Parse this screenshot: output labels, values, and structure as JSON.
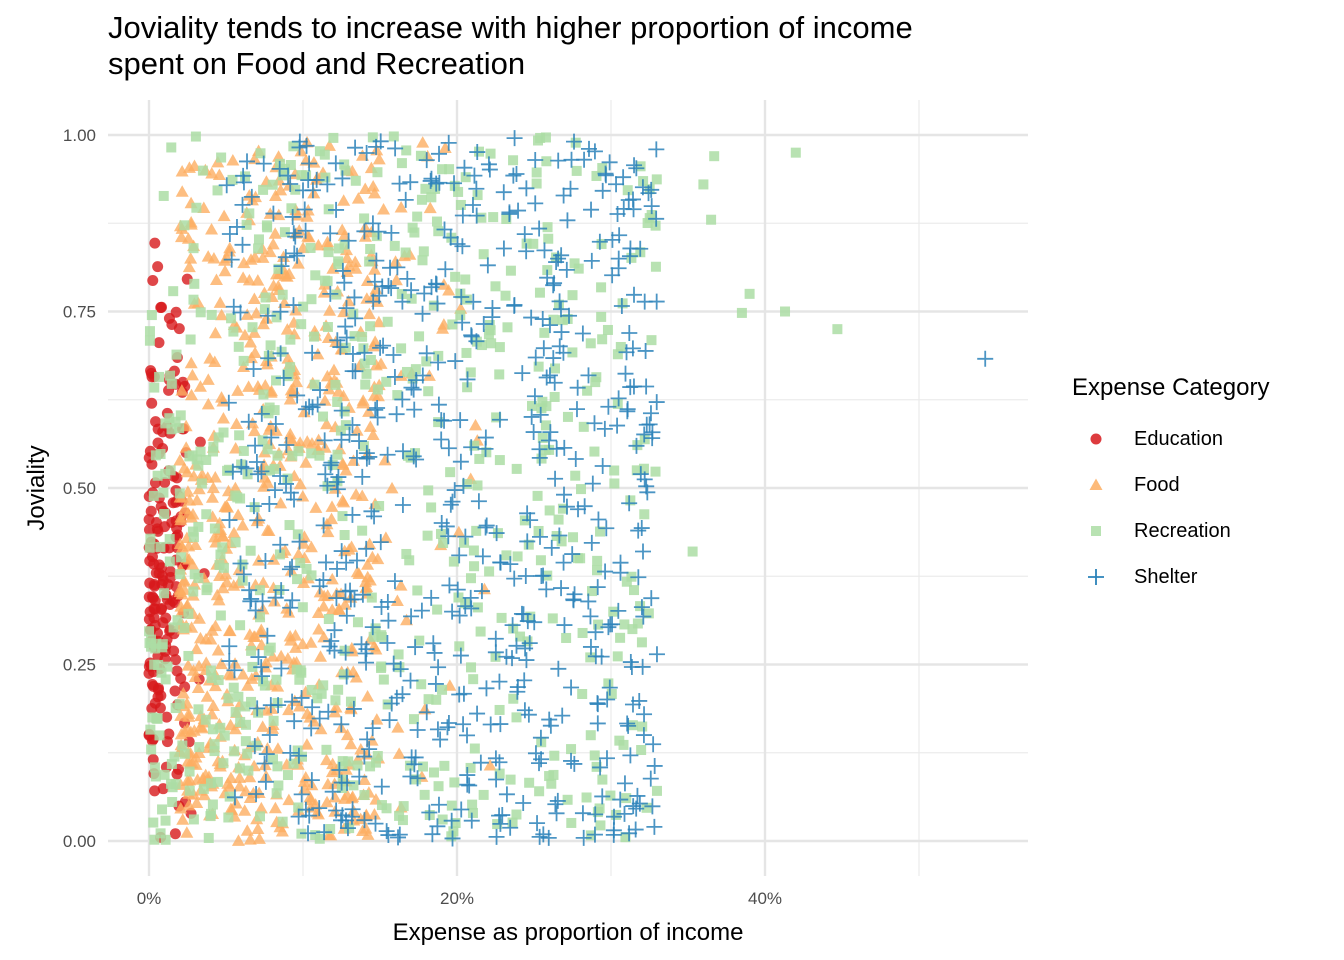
{
  "chart_data": {
    "type": "scatter",
    "title": "Joviality tends to increase with higher proportion of income\nspent on Food and Recreation",
    "xlabel": "Expense as proportion of income",
    "ylabel": "Joviality",
    "xlim": [
      -0.027,
      0.57
    ],
    "ylim": [
      -0.045,
      1.055
    ],
    "x_ticks": [
      0,
      0.2,
      0.4
    ],
    "x_tick_labels": [
      "0%",
      "20%",
      "40%"
    ],
    "x_minor_ticks": [
      0.1,
      0.3,
      0.5
    ],
    "y_ticks": [
      0,
      0.25,
      0.5,
      0.75,
      1.0
    ],
    "y_tick_labels": [
      "0.00",
      "0.25",
      "0.50",
      "0.75",
      "1.00"
    ],
    "grid": true,
    "legend": {
      "title": "Expense Category",
      "position": "right",
      "entries": [
        {
          "name": "Education",
          "shape": "circle",
          "color": "#d7191c"
        },
        {
          "name": "Food",
          "shape": "triangle",
          "color": "#fdae61"
        },
        {
          "name": "Recreation",
          "shape": "square",
          "color": "#abdda4"
        },
        {
          "name": "Shelter",
          "shape": "plus",
          "color": "#2b83ba"
        }
      ]
    },
    "series": [
      {
        "name": "Education",
        "n": 180,
        "x_range": [
          0,
          0.046
        ],
        "y_range": [
          0,
          0.98
        ],
        "note": "concentrated 0-2%, denser at low joviality"
      },
      {
        "name": "Food",
        "n": 700,
        "x_range": [
          0.02,
          0.25
        ],
        "y_range": [
          0,
          1.0
        ],
        "note": "bulk 3-15%"
      },
      {
        "name": "Recreation",
        "n": 650,
        "x_range": [
          0,
          0.33
        ],
        "y_range": [
          0,
          1.0
        ],
        "note": "spread wide, higher joviality at higher x"
      },
      {
        "name": "Shelter",
        "n": 650,
        "x_range": [
          0.05,
          0.33
        ],
        "y_range": [
          0,
          1.0
        ],
        "note": "bulk 8-33%"
      }
    ],
    "outliers": [
      {
        "series": "Recreation",
        "x": 0.42,
        "y": 0.975
      },
      {
        "series": "Recreation",
        "x": 0.39,
        "y": 0.775
      },
      {
        "series": "Recreation",
        "x": 0.385,
        "y": 0.748
      },
      {
        "series": "Recreation",
        "x": 0.413,
        "y": 0.75
      },
      {
        "series": "Recreation",
        "x": 0.447,
        "y": 0.725
      },
      {
        "series": "Recreation",
        "x": 0.353,
        "y": 0.41
      },
      {
        "series": "Recreation",
        "x": 0.365,
        "y": 0.88
      },
      {
        "series": "Recreation",
        "x": 0.36,
        "y": 0.93
      },
      {
        "series": "Recreation",
        "x": 0.367,
        "y": 0.97
      },
      {
        "series": "Shelter",
        "x": 0.543,
        "y": 0.683
      }
    ]
  }
}
